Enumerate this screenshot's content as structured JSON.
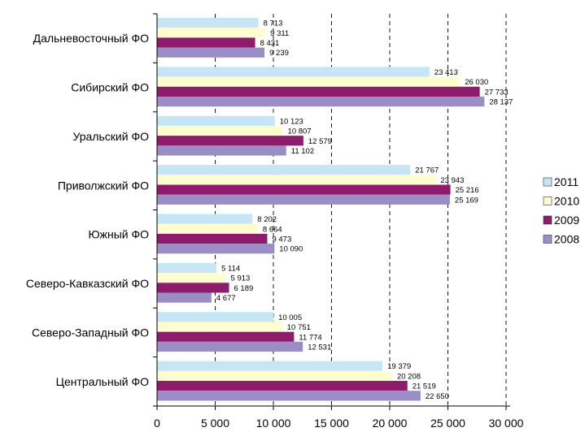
{
  "chart_data": {
    "type": "bar",
    "orientation": "horizontal",
    "categories": [
      "Дальневосточный ФО",
      "Сибирский ФО",
      "Уральский ФО",
      "Приволжский ФО",
      "Южный ФО",
      "Северо-Кавказский ФО",
      "Северо-Западный ФО",
      "Центральный ФО"
    ],
    "series": [
      {
        "name": "2011",
        "color": "#c6e6f6",
        "values": [
          8713,
          23413,
          10123,
          21767,
          8202,
          5114,
          10005,
          19379
        ],
        "labels": [
          "8 713",
          "23 413",
          "10 123",
          "21 767",
          "8 202",
          "5 114",
          "10 005",
          "19 379"
        ]
      },
      {
        "name": "2010",
        "color": "#fefdcf",
        "values": [
          9311,
          26030,
          10807,
          23943,
          8664,
          5913,
          10751,
          20208
        ],
        "labels": [
          "9 311",
          "26 030",
          "10 807",
          "23 943",
          "8 664",
          "5 913",
          "10 751",
          "20 208"
        ]
      },
      {
        "name": "2009",
        "color": "#8e1b6c",
        "values": [
          8431,
          27733,
          12579,
          25216,
          9473,
          6189,
          11774,
          21519
        ],
        "labels": [
          "8 431",
          "27 733",
          "12 579",
          "25 216",
          "9 473",
          "6 189",
          "11 774",
          "21 519"
        ]
      },
      {
        "name": "2008",
        "color": "#9b8ec6",
        "values": [
          9239,
          28137,
          11102,
          25169,
          10090,
          4677,
          12531,
          22650
        ],
        "labels": [
          "9 239",
          "28 137",
          "11 102",
          "25 169",
          "10 090",
          "4 677",
          "12 531",
          "22 650"
        ]
      }
    ],
    "xlim": [
      0,
      30000
    ],
    "xticks": [
      0,
      5000,
      10000,
      15000,
      20000,
      25000,
      30000
    ],
    "xtick_labels": [
      "0",
      "5 000",
      "10 000",
      "15 000",
      "20 000",
      "25 000",
      "30 000"
    ],
    "grid": "vertical dashed",
    "legend_position": "right",
    "title": "",
    "xlabel": "",
    "ylabel": ""
  }
}
